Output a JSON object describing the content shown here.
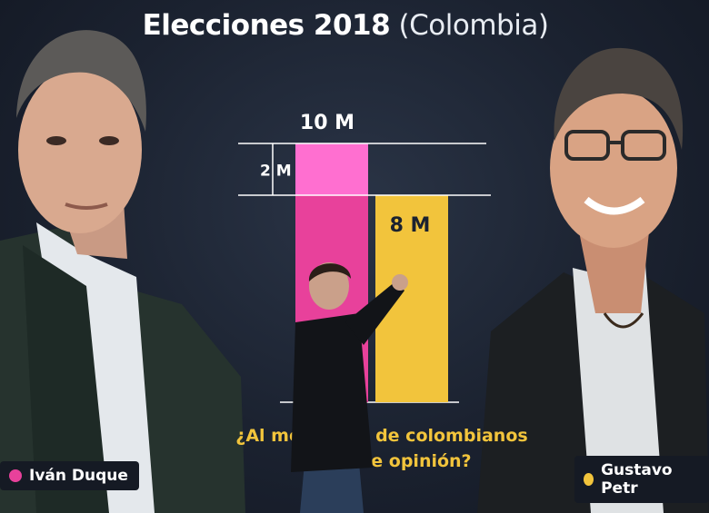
{
  "title": {
    "main": "Elecciones 2018",
    "sub": "(Colombia)"
  },
  "question": {
    "line1": "¿Al mer    nillón de colombianos",
    "line2": "ca      ron de opinión?"
  },
  "candidates": [
    {
      "name": "Iván Duque",
      "color": "#e8419b"
    },
    {
      "name": "Gustavo Petr",
      "color": "#f2c43c"
    }
  ],
  "chart_data": {
    "type": "bar",
    "title": "Elecciones 2018 (Colombia)",
    "categories": [
      "Iván Duque",
      "Gustavo Petro"
    ],
    "series": [
      {
        "name": "Iván Duque",
        "values": [
          10,
          null
        ],
        "color": "#e8419b"
      },
      {
        "name": "Gustavo Petro",
        "values": [
          null,
          8
        ],
        "color": "#f2c43c"
      }
    ],
    "values": [
      10,
      8
    ],
    "unit": "M",
    "data_labels": [
      "10 M",
      "8 M"
    ],
    "difference": {
      "value": 2,
      "label": "2 M",
      "color": "#ff6fd0"
    },
    "ylim": [
      0,
      10
    ]
  }
}
